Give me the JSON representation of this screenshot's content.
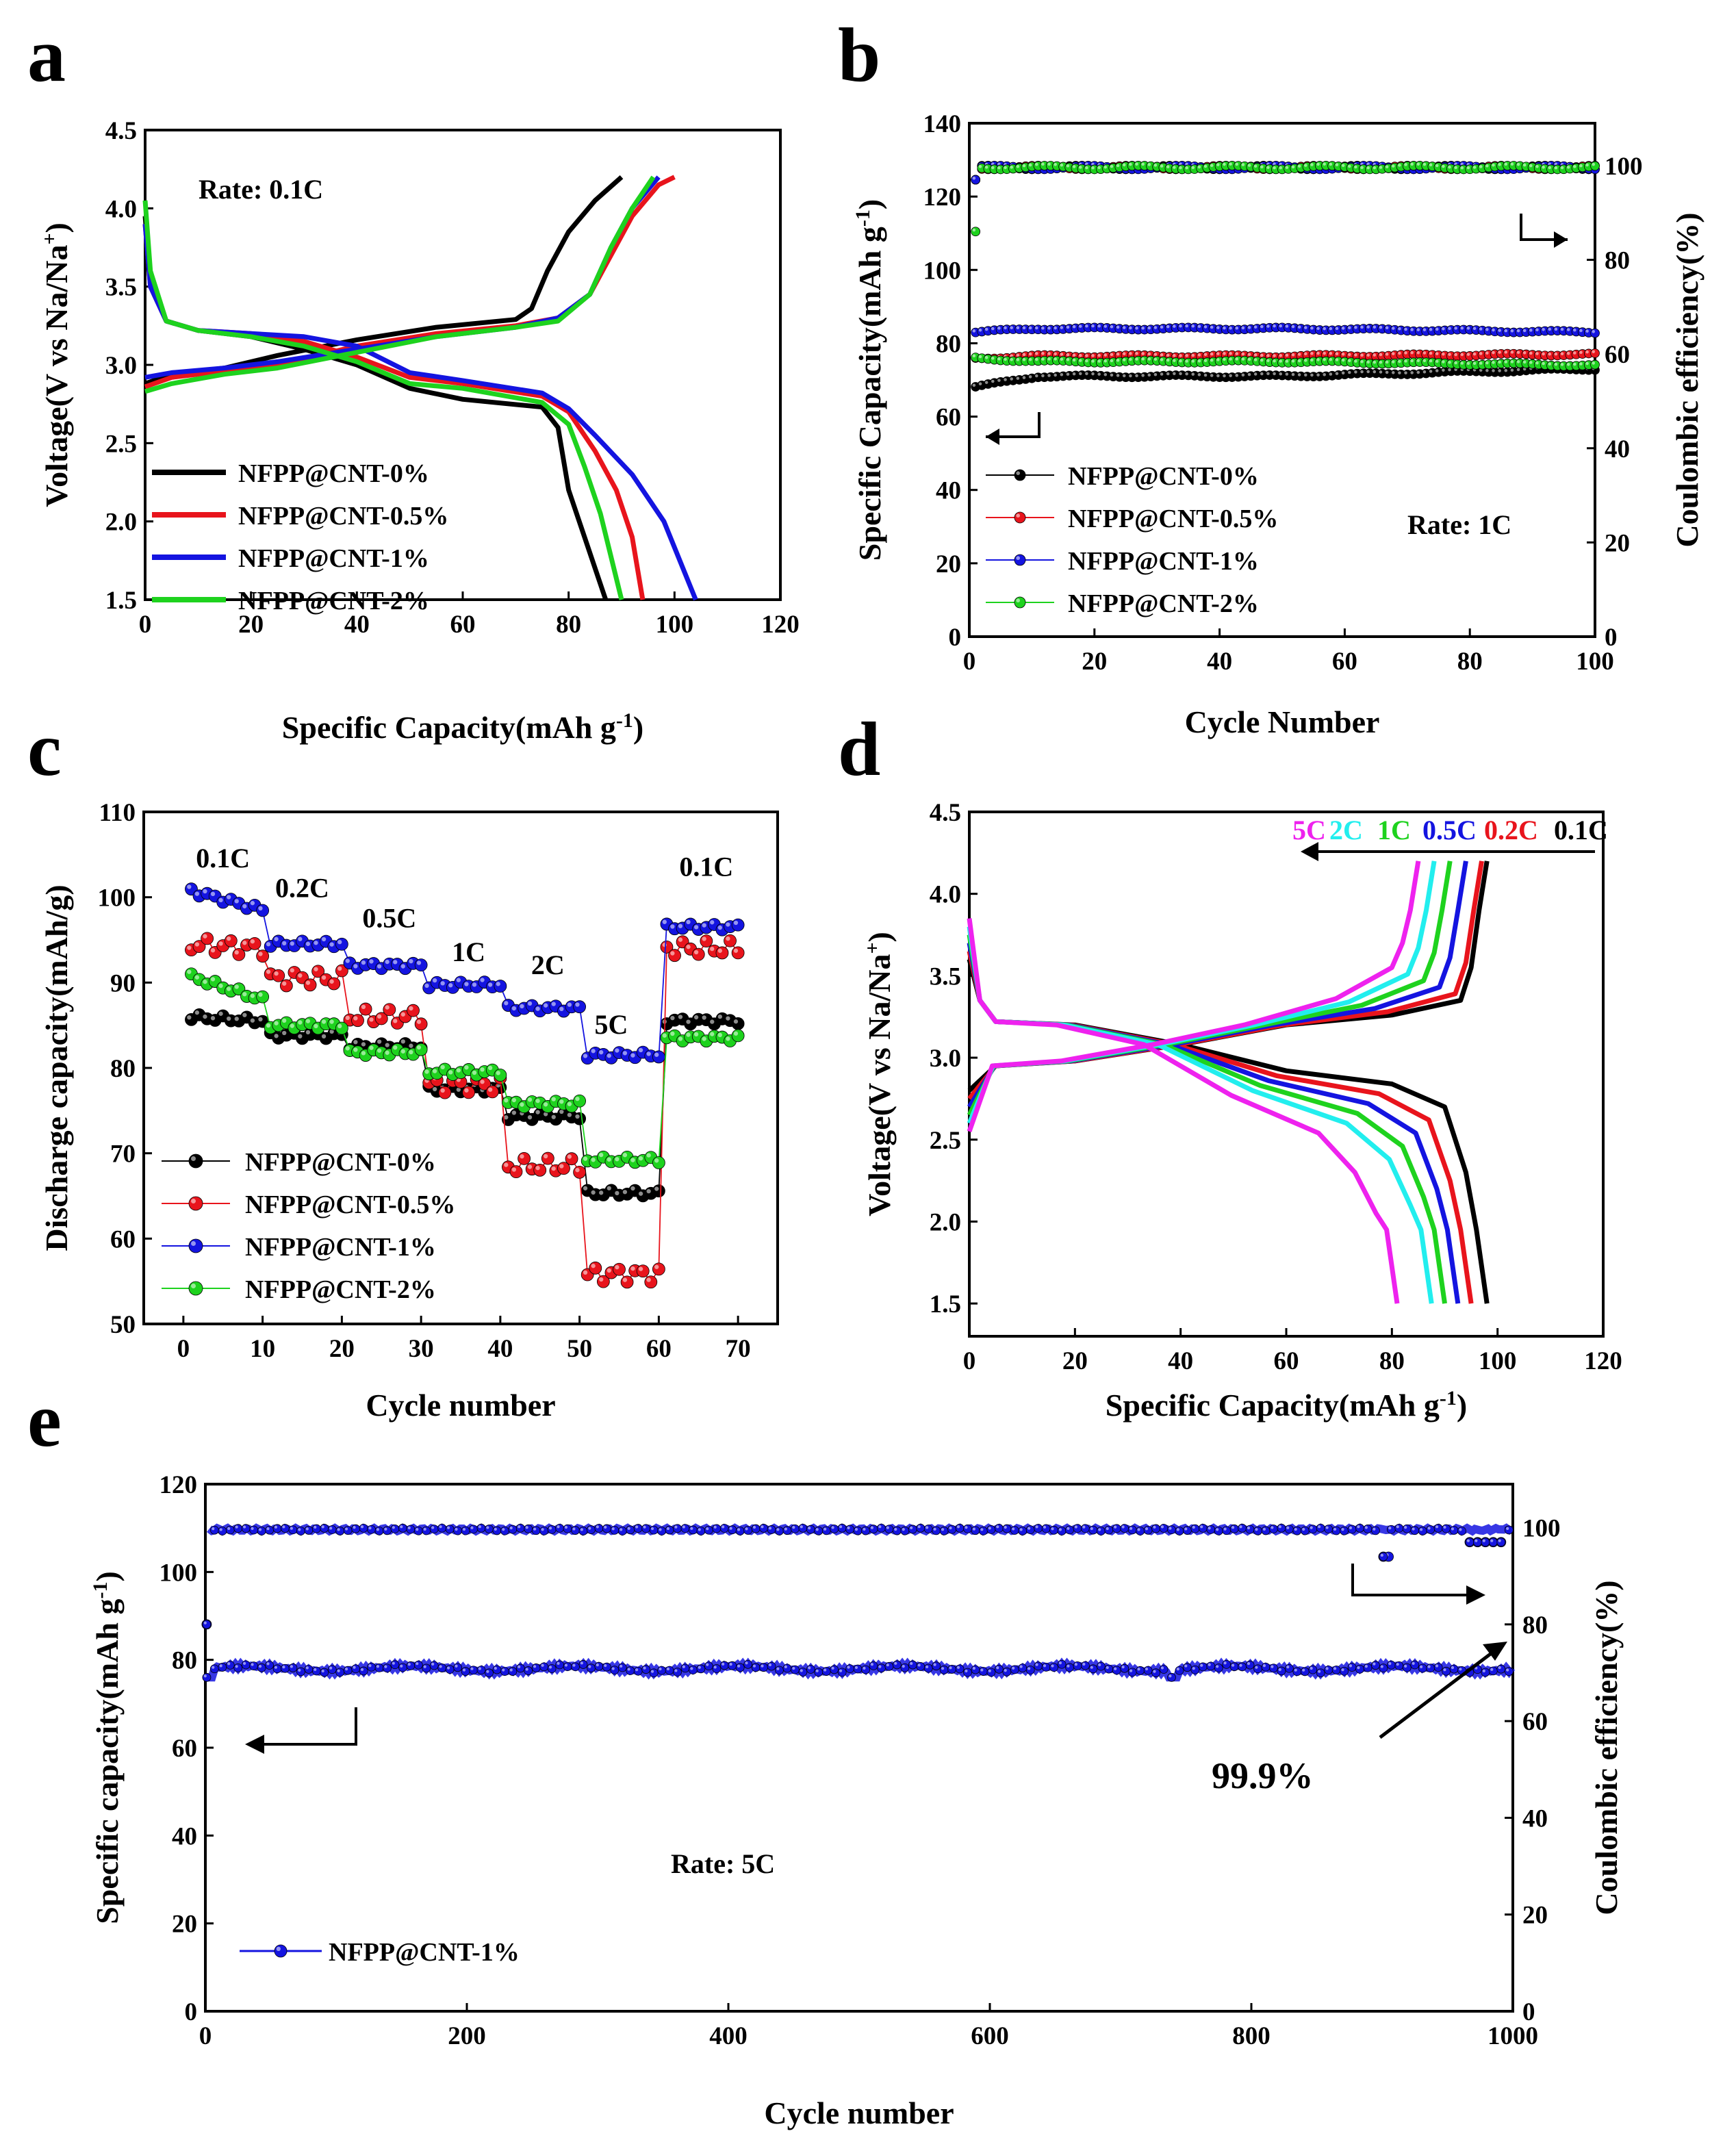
{
  "colors": {
    "black": "#000000",
    "red": "#e8141c",
    "blue": "#1414e0",
    "green": "#1ed21e",
    "magenta": "#ee22ee",
    "cyan": "#22eeee",
    "navy": "#1a1aa0"
  },
  "chart_data": [
    {
      "id": "a",
      "type": "line",
      "panel_label": "a",
      "xlabel": "Specific Capacity(mAh g-1)",
      "xlabel_main": "Specific Capacity(mAh g",
      "xlabel_sup": "-1",
      "xlabel_end": ")",
      "ylabel": "Voltage(V vs Na/Na+)",
      "ylabel_main": "Voltage(V vs Na/Na",
      "ylabel_sup": "+",
      "ylabel_end": ")",
      "xlim": [
        0,
        120
      ],
      "ylim": [
        1.5,
        4.5
      ],
      "xticks": [
        "0",
        "20",
        "40",
        "60",
        "80",
        "100",
        "120"
      ],
      "yticks": [
        "1.5",
        "2.0",
        "2.5",
        "3.0",
        "3.5",
        "4.0",
        "4.5"
      ],
      "annotation": "Rate: 0.1C",
      "legend": [
        "NFPP@CNT-0%",
        "NFPP@CNT-0.5%",
        "NFPP@CNT-1%",
        "NFPP@CNT-2%"
      ],
      "series": [
        {
          "name": "NFPP@CNT-0%",
          "color": "#000000",
          "charge": [
            [
              0,
              2.88
            ],
            [
              5,
              2.94
            ],
            [
              15,
              2.98
            ],
            [
              25,
              3.06
            ],
            [
              40,
              3.16
            ],
            [
              55,
              3.24
            ],
            [
              70,
              3.29
            ],
            [
              73,
              3.36
            ],
            [
              76,
              3.6
            ],
            [
              80,
              3.85
            ],
            [
              85,
              4.05
            ],
            [
              90,
              4.2
            ]
          ],
          "discharge": [
            [
              0,
              3.95
            ],
            [
              1,
              3.55
            ],
            [
              4,
              3.28
            ],
            [
              10,
              3.22
            ],
            [
              20,
              3.18
            ],
            [
              30,
              3.1
            ],
            [
              40,
              3.0
            ],
            [
              50,
              2.85
            ],
            [
              60,
              2.78
            ],
            [
              75,
              2.73
            ],
            [
              78,
              2.6
            ],
            [
              80,
              2.2
            ],
            [
              83,
              1.9
            ],
            [
              87,
              1.5
            ]
          ]
        },
        {
          "name": "NFPP@CNT-0.5%",
          "color": "#e8141c",
          "charge": [
            [
              0,
              2.86
            ],
            [
              5,
              2.92
            ],
            [
              15,
              2.96
            ],
            [
              25,
              3.0
            ],
            [
              40,
              3.12
            ],
            [
              55,
              3.2
            ],
            [
              70,
              3.25
            ],
            [
              78,
              3.3
            ],
            [
              84,
              3.45
            ],
            [
              88,
              3.7
            ],
            [
              92,
              3.95
            ],
            [
              97,
              4.15
            ],
            [
              100,
              4.2
            ]
          ],
          "discharge": [
            [
              0,
              3.9
            ],
            [
              1,
              3.5
            ],
            [
              4,
              3.28
            ],
            [
              10,
              3.22
            ],
            [
              20,
              3.2
            ],
            [
              30,
              3.15
            ],
            [
              40,
              3.05
            ],
            [
              50,
              2.92
            ],
            [
              60,
              2.88
            ],
            [
              75,
              2.8
            ],
            [
              80,
              2.7
            ],
            [
              85,
              2.45
            ],
            [
              89,
              2.2
            ],
            [
              92,
              1.9
            ],
            [
              94,
              1.5
            ]
          ]
        },
        {
          "name": "NFPP@CNT-1%",
          "color": "#1414e0",
          "charge": [
            [
              0,
              2.92
            ],
            [
              5,
              2.95
            ],
            [
              15,
              2.98
            ],
            [
              25,
              3.02
            ],
            [
              40,
              3.1
            ],
            [
              55,
              3.18
            ],
            [
              70,
              3.24
            ],
            [
              78,
              3.3
            ],
            [
              84,
              3.45
            ],
            [
              88,
              3.75
            ],
            [
              92,
              4.0
            ],
            [
              97,
              4.2
            ]
          ],
          "discharge": [
            [
              0,
              3.9
            ],
            [
              1,
              3.5
            ],
            [
              4,
              3.28
            ],
            [
              10,
              3.22
            ],
            [
              20,
              3.2
            ],
            [
              30,
              3.18
            ],
            [
              40,
              3.12
            ],
            [
              50,
              2.95
            ],
            [
              60,
              2.9
            ],
            [
              75,
              2.82
            ],
            [
              80,
              2.72
            ],
            [
              85,
              2.55
            ],
            [
              92,
              2.3
            ],
            [
              98,
              2.0
            ],
            [
              104,
              1.5
            ]
          ]
        },
        {
          "name": "NFPP@CNT-2%",
          "color": "#1ed21e",
          "charge": [
            [
              0,
              2.83
            ],
            [
              5,
              2.88
            ],
            [
              15,
              2.94
            ],
            [
              25,
              2.98
            ],
            [
              40,
              3.08
            ],
            [
              55,
              3.18
            ],
            [
              70,
              3.24
            ],
            [
              78,
              3.28
            ],
            [
              84,
              3.45
            ],
            [
              88,
              3.75
            ],
            [
              92,
              4.0
            ],
            [
              96,
              4.2
            ]
          ],
          "discharge": [
            [
              0,
              4.05
            ],
            [
              1,
              3.6
            ],
            [
              4,
              3.28
            ],
            [
              10,
              3.22
            ],
            [
              20,
              3.18
            ],
            [
              30,
              3.12
            ],
            [
              40,
              3.02
            ],
            [
              50,
              2.88
            ],
            [
              60,
              2.85
            ],
            [
              75,
              2.76
            ],
            [
              80,
              2.62
            ],
            [
              83,
              2.35
            ],
            [
              86,
              2.05
            ],
            [
              90,
              1.5
            ]
          ]
        }
      ]
    },
    {
      "id": "b",
      "type": "scatter",
      "panel_label": "b",
      "xlabel": "Cycle Number",
      "ylabel": "Specific Capacity(mAh g-1)",
      "ylabel_main": "Specific Capacity(mAh g",
      "ylabel_sup": "-1",
      "ylabel_end": ")",
      "y2label": "Coulombic efficiency(%)",
      "xlim": [
        0,
        100
      ],
      "ylim": [
        0,
        140
      ],
      "y2lim": [
        0,
        109
      ],
      "xticks": [
        "0",
        "20",
        "40",
        "60",
        "80",
        "100"
      ],
      "yticks": [
        "0",
        "20",
        "40",
        "60",
        "80",
        "100",
        "120",
        "140"
      ],
      "y2ticks": [
        "0",
        "20",
        "40",
        "60",
        "80",
        "100"
      ],
      "annotation": "Rate: 1C",
      "legend": [
        "NFPP@CNT-0%",
        "NFPP@CNT-0.5%",
        "NFPP@CNT-1%",
        "NFPP@CNT-2%"
      ],
      "series": [
        {
          "name": "NFPP@CNT-0%",
          "color": "#000000",
          "start": 68,
          "mid": 71,
          "end": 73
        },
        {
          "name": "NFPP@CNT-0.5%",
          "color": "#e8141c",
          "start": 76,
          "mid": 76.5,
          "end": 77
        },
        {
          "name": "NFPP@CNT-1%",
          "color": "#1414e0",
          "start": 83,
          "mid": 84,
          "end": 83
        },
        {
          "name": "NFPP@CNT-2%",
          "color": "#1ed21e",
          "start": 76,
          "mid": 75,
          "end": 74
        }
      ],
      "efficiency": {
        "first_cycle": 86,
        "steady": 99.6
      }
    },
    {
      "id": "c",
      "type": "scatter",
      "panel_label": "c",
      "xlabel": "Cycle number",
      "ylabel": "Discharge capacity(mAh/g)",
      "xlim": [
        -5,
        75
      ],
      "ylim": [
        50,
        110
      ],
      "xticks": [
        "0",
        "10",
        "20",
        "30",
        "40",
        "50",
        "60",
        "70"
      ],
      "yticks": [
        "50",
        "60",
        "70",
        "80",
        "90",
        "100",
        "110"
      ],
      "rate_labels": [
        "0.1C",
        "0.2C",
        "0.5C",
        "1C",
        "2C",
        "5C",
        "0.1C"
      ],
      "legend": [
        "NFPP@CNT-0%",
        "NFPP@CNT-0.5%",
        "NFPP@CNT-1%",
        "NFPP@CNT-2%"
      ],
      "series": [
        {
          "name": "NFPP@CNT-0%",
          "color": "#000000",
          "segments": [
            85.5,
            83.8,
            82.5,
            77.5,
            74.3,
            65.3,
            85.5
          ]
        },
        {
          "name": "NFPP@CNT-0.5%",
          "color": "#e8141c",
          "segments": [
            94,
            90.5,
            86,
            78,
            68.5,
            55.8,
            94
          ]
        },
        {
          "name": "NFPP@CNT-1%",
          "color": "#1414e0",
          "segments": [
            98.5,
            94.5,
            92,
            89.7,
            87,
            81.5,
            96.5
          ]
        },
        {
          "name": "NFPP@CNT-2%",
          "color": "#1ed21e",
          "segments": [
            88,
            85,
            81.8,
            79.5,
            75.8,
            69.2,
            83.5
          ]
        }
      ]
    },
    {
      "id": "d",
      "type": "line",
      "panel_label": "d",
      "xlabel": "Specific Capacity(mAh g-1)",
      "xlabel_main": "Specific Capacity(mAh g",
      "xlabel_sup": "-1",
      "xlabel_end": ")",
      "ylabel": "Voltage(V vs Na/Na+)",
      "ylabel_main": "Voltage(V vs Na/Na",
      "ylabel_sup": "+",
      "ylabel_end": ")",
      "xlim": [
        0,
        120
      ],
      "ylim": [
        1.3,
        4.5
      ],
      "xticks": [
        "0",
        "20",
        "40",
        "60",
        "80",
        "100",
        "120"
      ],
      "yticks": [
        "1.5",
        "2.0",
        "2.5",
        "3.0",
        "3.5",
        "4.0",
        "4.5"
      ],
      "rate_labels": [
        {
          "text": "5C",
          "color": "#ee22ee"
        },
        {
          "text": "2C",
          "color": "#22eeee"
        },
        {
          "text": "1C",
          "color": "#1ed21e"
        },
        {
          "text": "0.5C",
          "color": "#1414e0"
        },
        {
          "text": "0.2C",
          "color": "#e8141c"
        },
        {
          "text": "0.1C",
          "color": "#000000"
        }
      ],
      "series": [
        {
          "name": "0.1C",
          "color": "#000000",
          "end_charge": 98,
          "end_discharge": 98
        },
        {
          "name": "0.2C",
          "color": "#e8141c",
          "end_charge": 97,
          "end_discharge": 95
        },
        {
          "name": "0.5C",
          "color": "#1414e0",
          "end_charge": 94,
          "end_discharge": 92.5
        },
        {
          "name": "1C",
          "color": "#1ed21e",
          "end_charge": 91,
          "end_discharge": 90
        },
        {
          "name": "2C",
          "color": "#22eeee",
          "end_charge": 88,
          "end_discharge": 87.5
        },
        {
          "name": "5C",
          "color": "#ee22ee",
          "end_charge": 85,
          "end_discharge": 81
        }
      ]
    },
    {
      "id": "e",
      "type": "scatter",
      "panel_label": "e",
      "xlabel": "Cycle number",
      "ylabel": "Specific capacity(mAh g-1)",
      "ylabel_main": "Specific capacity(mAh g",
      "ylabel_sup": "-1",
      "ylabel_end": ")",
      "y2label": "Coulombic efficiency(%)",
      "xlim": [
        0,
        1000
      ],
      "ylim": [
        0,
        120
      ],
      "y2lim": [
        0,
        109
      ],
      "xticks": [
        "0",
        "200",
        "400",
        "600",
        "800",
        "1000"
      ],
      "yticks": [
        "0",
        "20",
        "40",
        "60",
        "80",
        "100",
        "120"
      ],
      "y2ticks": [
        "0",
        "20",
        "40",
        "60",
        "80",
        "100"
      ],
      "annotation": "Rate: 5C",
      "retention": "99.9%",
      "legend": [
        "NFPP@CNT-1%"
      ],
      "series": [
        {
          "name": "NFPP@CNT-1%",
          "color": "#1414e0",
          "capacity": 78,
          "efficiency": 99.6,
          "first_efficiency": 80
        }
      ]
    }
  ]
}
